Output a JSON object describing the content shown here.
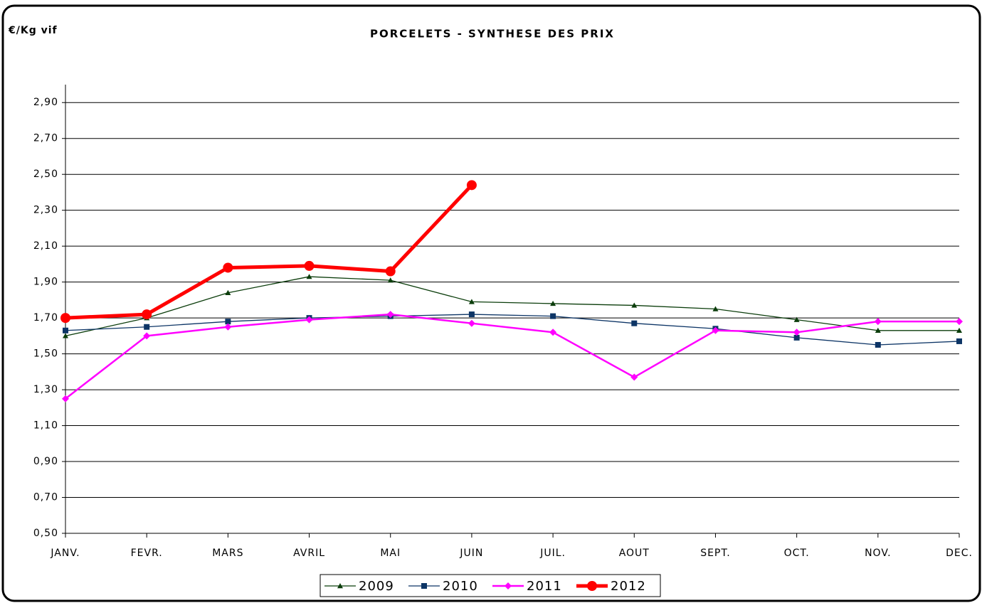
{
  "chart_data": {
    "type": "line",
    "title": "PORCELETS - SYNTHESE DES PRIX",
    "y_label": "€/Kg vif",
    "categories": [
      "JANV.",
      "FEVR.",
      "MARS",
      "AVRIL",
      "MAI",
      "JUIN",
      "JUIL.",
      "AOUT",
      "SEPT.",
      "OCT.",
      "NOV.",
      "DEC."
    ],
    "ylim": [
      0.5,
      3.0
    ],
    "yticks": [
      {
        "value": 0.5,
        "label": "0,50"
      },
      {
        "value": 0.7,
        "label": "0,70"
      },
      {
        "value": 0.9,
        "label": "0,90"
      },
      {
        "value": 1.1,
        "label": "1,10"
      },
      {
        "value": 1.3,
        "label": "1,30"
      },
      {
        "value": 1.5,
        "label": "1,50"
      },
      {
        "value": 1.7,
        "label": "1,70"
      },
      {
        "value": 1.9,
        "label": "1,90"
      },
      {
        "value": 2.1,
        "label": "2,10"
      },
      {
        "value": 2.3,
        "label": "2,30"
      },
      {
        "value": 2.5,
        "label": "2,50"
      },
      {
        "value": 2.7,
        "label": "2,70"
      },
      {
        "value": 2.9,
        "label": "2,90"
      }
    ],
    "grid": true,
    "legend": "bottom",
    "series": [
      {
        "name": "2009",
        "color": "#0b3d0b",
        "marker": "triangle",
        "values": [
          1.6,
          1.7,
          1.84,
          1.93,
          1.91,
          1.79,
          1.78,
          1.77,
          1.75,
          1.69,
          1.63,
          1.63
        ]
      },
      {
        "name": "2010",
        "color": "#0d3566",
        "marker": "square",
        "values": [
          1.63,
          1.65,
          1.68,
          1.7,
          1.71,
          1.72,
          1.71,
          1.67,
          1.64,
          1.59,
          1.55,
          1.57
        ]
      },
      {
        "name": "2011",
        "color": "#ff00ff",
        "marker": "diamond",
        "values": [
          1.25,
          1.6,
          1.65,
          1.69,
          1.72,
          1.67,
          1.62,
          1.37,
          1.63,
          1.62,
          1.68,
          1.68
        ]
      },
      {
        "name": "2012",
        "color": "#ff0000",
        "marker": "circle",
        "values": [
          1.7,
          1.72,
          1.98,
          1.99,
          1.96,
          2.44,
          null,
          null,
          null,
          null,
          null,
          null
        ]
      }
    ]
  }
}
